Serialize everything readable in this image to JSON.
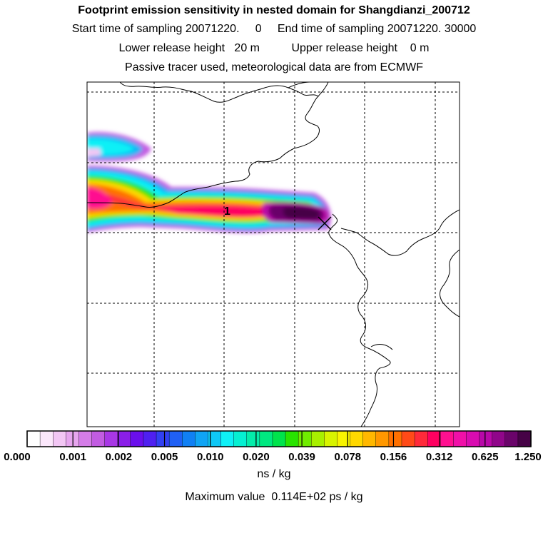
{
  "header": {
    "title": "Footprint emission sensitivity in nested domain for Shangdianzi_200712",
    "start_label": "Start time of sampling",
    "start_value": "20071220.     0",
    "end_label": "End time of sampling",
    "end_value": "20071220. 30000",
    "lower_label": "Lower release height",
    "lower_value": "20 m",
    "upper_label": "Upper release height",
    "upper_value": "0 m",
    "tracer_note": "Passive tracer used, meteorological data are from ECMWF"
  },
  "map": {
    "release_marker": "1",
    "release_point_icon": "cross-marker-icon"
  },
  "colorbar": {
    "colors": [
      "#ffffff",
      "#fbe7fb",
      "#f2c6f4",
      "#e6a5ee",
      "#d57de8",
      "#c25ce2",
      "#a837e6",
      "#8a1ee8",
      "#6a0fec",
      "#4f20f0",
      "#3140f2",
      "#2060f4",
      "#1080f4",
      "#10a4f4",
      "#0fc8f6",
      "#0ff0f6",
      "#06f0d2",
      "#04ecaa",
      "#00e880",
      "#00e44c",
      "#28e400",
      "#70ec00",
      "#a8f000",
      "#d8f400",
      "#f8f400",
      "#ffd800",
      "#ffb800",
      "#ff9800",
      "#ff7000",
      "#ff4a18",
      "#ff2a3a",
      "#ff0060",
      "#ff1090",
      "#f010a8",
      "#d80cb0",
      "#b808a8",
      "#90068a",
      "#6a046a",
      "#460246"
    ],
    "tick_labels": [
      "0.000",
      "0.001",
      "0.002",
      "0.005",
      "0.010",
      "0.020",
      "0.039",
      "0.078",
      "0.156",
      "0.312",
      "0.625",
      "1.250"
    ],
    "units": "ns / kg"
  },
  "footer": {
    "max_label": "Maximum value",
    "max_value": "0.114E+02 ps / kg"
  },
  "legend_colors": {
    "coast": "#000000",
    "grid": "#000000"
  }
}
